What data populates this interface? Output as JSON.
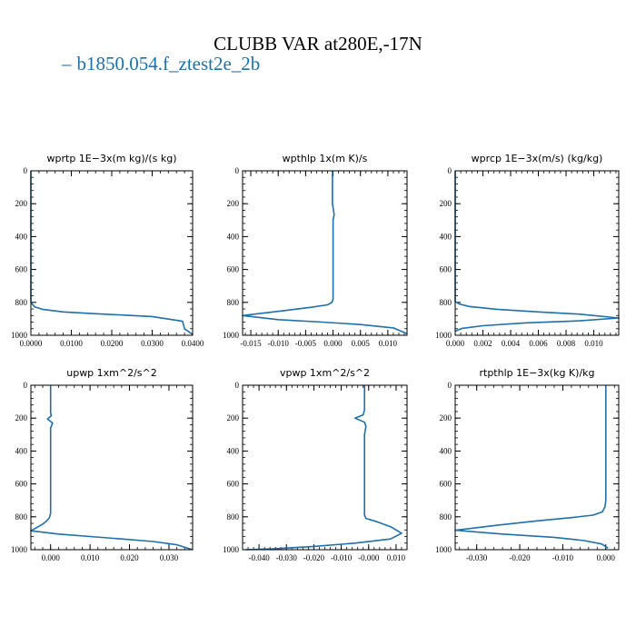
{
  "title": "CLUBB VAR at280E,-17N",
  "legend": {
    "dash": "–",
    "label": "b1850.054.f_ztest2e_2b",
    "color": "#1f6fa8"
  },
  "chart_data": [
    {
      "type": "line",
      "title": "wprtp   1E−3x(m kg)/(s kg)",
      "xlim": [
        0,
        0.04
      ],
      "ylim": [
        1000,
        0
      ],
      "xticks": [
        0,
        0.01,
        0.02,
        0.03,
        0.04
      ],
      "xtick_labels": [
        "0.0000",
        "0.0100",
        "0.0200",
        "0.0300",
        "0.0400"
      ],
      "yticks": [
        0,
        200,
        400,
        600,
        800,
        1000
      ],
      "ytick_labels": [
        "0",
        "200",
        "400",
        "600",
        "800",
        "1000"
      ],
      "series": [
        {
          "color": "#1f6fa8",
          "x": [
            0,
            0,
            0,
            0.0003,
            0.001,
            0.003,
            0.008,
            0.015,
            0.022,
            0.03,
            0.0375,
            0.038,
            0.04
          ],
          "y": [
            0,
            500,
            795,
            810,
            828,
            843,
            858,
            868,
            876,
            886,
            915,
            960,
            995
          ]
        }
      ]
    },
    {
      "type": "line",
      "title": "wpthlp   1x(m K)/s",
      "xlim": [
        -0.0165,
        0.0135
      ],
      "ylim": [
        1000,
        0
      ],
      "xticks": [
        -0.015,
        -0.01,
        -0.005,
        0,
        0.005,
        0.01
      ],
      "xtick_labels": [
        "-0.015",
        "-0.010",
        "-0.005",
        "0.000",
        "0.005",
        "0.010"
      ],
      "yticks": [
        0,
        200,
        400,
        600,
        800,
        1000
      ],
      "ytick_labels": [
        "0",
        "200",
        "400",
        "600",
        "800",
        "1000"
      ],
      "series": [
        {
          "color": "#1f6fa8",
          "x": [
            -0.0001,
            -0.0001,
            0.0002,
            0,
            0,
            0,
            -0.0002,
            -0.001,
            -0.004,
            -0.009,
            -0.0165,
            -0.01,
            -0.002,
            0.005,
            0.011,
            0.0135
          ],
          "y": [
            0,
            200,
            265,
            300,
            600,
            780,
            800,
            815,
            830,
            850,
            880,
            905,
            920,
            935,
            955,
            990
          ]
        }
      ]
    },
    {
      "type": "line",
      "title": "wprcp   1E−3x(m/s) (kg/kg)",
      "xlim": [
        0,
        0.0118
      ],
      "ylim": [
        1000,
        0
      ],
      "xticks": [
        0,
        0.002,
        0.004,
        0.006,
        0.008,
        0.01
      ],
      "xtick_labels": [
        "0.000",
        "0.002",
        "0.004",
        "0.006",
        "0.008",
        "0.010"
      ],
      "yticks": [
        0,
        200,
        400,
        600,
        800,
        1000
      ],
      "ytick_labels": [
        "0",
        "200",
        "400",
        "600",
        "800",
        "1000"
      ],
      "series": [
        {
          "color": "#1f6fa8",
          "x": [
            0,
            0,
            0,
            0.0003,
            0.001,
            0.003,
            0.006,
            0.009,
            0.0118,
            0.009,
            0.005,
            0.002,
            0.0005,
            0
          ],
          "y": [
            0,
            500,
            795,
            810,
            825,
            842,
            858,
            872,
            895,
            912,
            925,
            942,
            958,
            975
          ]
        }
      ]
    },
    {
      "type": "line",
      "title": "upwp   1xm^2/s^2",
      "xlim": [
        -0.005,
        0.036
      ],
      "ylim": [
        1000,
        0
      ],
      "xticks": [
        0,
        0.01,
        0.02,
        0.03
      ],
      "xtick_labels": [
        "0.000",
        "0.010",
        "0.020",
        "0.030"
      ],
      "yticks": [
        0,
        200,
        400,
        600,
        800,
        1000
      ],
      "ytick_labels": [
        "0",
        "200",
        "400",
        "600",
        "800",
        "1000"
      ],
      "series": [
        {
          "color": "#1f6fa8",
          "x": [
            0,
            0,
            0.0002,
            -0.0008,
            0.0005,
            0,
            0,
            0,
            -0.0003,
            -0.001,
            -0.002,
            -0.005,
            0.002,
            0.01,
            0.018,
            0.026,
            0.032,
            0.036
          ],
          "y": [
            0,
            170,
            185,
            205,
            230,
            260,
            500,
            780,
            805,
            825,
            845,
            885,
            905,
            920,
            935,
            950,
            970,
            1000
          ]
        }
      ]
    },
    {
      "type": "line",
      "title": "vpwp   1xm^2/s^2",
      "xlim": [
        -0.046,
        0.014
      ],
      "ylim": [
        1000,
        0
      ],
      "xticks": [
        -0.04,
        -0.03,
        -0.02,
        -0.01,
        0,
        0.01
      ],
      "xtick_labels": [
        "-0.040",
        "-0.030",
        "-0.020",
        "-0.010",
        "-0.000",
        "0.010"
      ],
      "yticks": [
        0,
        200,
        400,
        600,
        800,
        1000
      ],
      "ytick_labels": [
        "0",
        "200",
        "400",
        "600",
        "800",
        "1000"
      ],
      "series": [
        {
          "color": "#1f6fa8",
          "x": [
            -0.0015,
            -0.0015,
            -0.002,
            -0.005,
            -0.0015,
            -0.001,
            -0.0015,
            -0.0015,
            -0.001,
            0.003,
            0.008,
            0.012,
            0.008,
            -0.005,
            -0.02,
            -0.035,
            -0.045
          ],
          "y": [
            0,
            150,
            180,
            200,
            225,
            250,
            300,
            790,
            810,
            830,
            860,
            900,
            935,
            960,
            980,
            995,
            1000
          ]
        }
      ]
    },
    {
      "type": "line",
      "title": "rtpthlp   1E−3x(kg K)/kg",
      "xlim": [
        -0.035,
        0.003
      ],
      "ylim": [
        1000,
        0
      ],
      "xticks": [
        -0.03,
        -0.02,
        -0.01,
        0
      ],
      "xtick_labels": [
        "-0.030",
        "-0.020",
        "-0.010",
        "0.000"
      ],
      "yticks": [
        0,
        200,
        400,
        600,
        800,
        1000
      ],
      "ytick_labels": [
        "0",
        "200",
        "400",
        "600",
        "800",
        "1000"
      ],
      "series": [
        {
          "color": "#1f6fa8",
          "x": [
            0,
            0,
            -0.0002,
            -0.0008,
            -0.003,
            -0.008,
            -0.016,
            -0.025,
            -0.035,
            -0.024,
            -0.012,
            -0.005,
            -0.001,
            0.0005
          ],
          "y": [
            0,
            700,
            740,
            770,
            790,
            805,
            825,
            850,
            882,
            905,
            925,
            945,
            965,
            990
          ]
        }
      ]
    }
  ]
}
